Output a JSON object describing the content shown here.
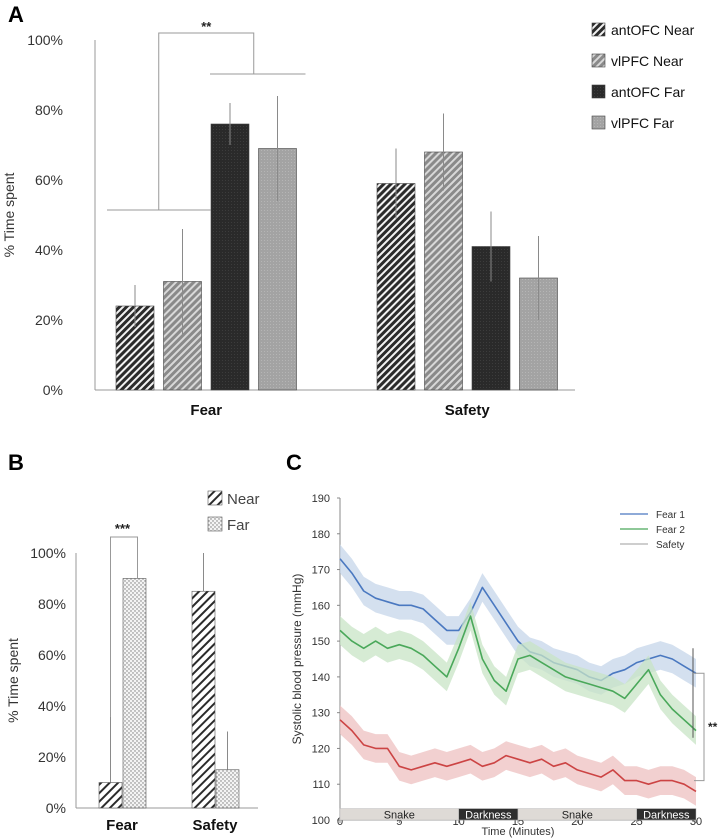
{
  "chart_data": [
    {
      "panel": "A",
      "type": "bar",
      "ylabel": "% Time spent",
      "yticks": [
        "0%",
        "20%",
        "40%",
        "60%",
        "80%",
        "100%"
      ],
      "ylim": [
        0,
        100
      ],
      "categories": [
        "Fear",
        "Safety"
      ],
      "series": [
        {
          "name": "antOFC Near",
          "values": [
            24,
            59
          ],
          "errors": [
            6,
            10
          ],
          "pattern": "dark-hatch"
        },
        {
          "name": "vlPFC Near",
          "values": [
            31,
            68
          ],
          "errors": [
            15,
            11
          ],
          "pattern": "light-hatch"
        },
        {
          "name": "antOFC Far",
          "values": [
            76,
            41
          ],
          "errors": [
            6,
            10
          ],
          "pattern": "dark-solid"
        },
        {
          "name": "vlPFC Far",
          "values": [
            69,
            32
          ],
          "errors": [
            15,
            12
          ],
          "pattern": "light-solid"
        }
      ],
      "annotation": "**",
      "legend": "right"
    },
    {
      "panel": "B",
      "type": "bar",
      "ylabel": "% Time spent",
      "yticks": [
        "0%",
        "20%",
        "40%",
        "60%",
        "80%",
        "100%"
      ],
      "ylim": [
        0,
        100
      ],
      "categories": [
        "Fear",
        "Safety"
      ],
      "series": [
        {
          "name": "Near",
          "values": [
            10,
            85
          ],
          "errors": [
            26,
            15
          ],
          "pattern": "hatch"
        },
        {
          "name": "Far",
          "values": [
            90,
            15
          ],
          "errors": [
            0,
            15
          ],
          "pattern": "dots"
        }
      ],
      "annotation": "***",
      "legend": "top-right"
    },
    {
      "panel": "C",
      "type": "line",
      "xlabel": "Time (Minutes)",
      "ylabel": "Systolic blood pressure (mmHg)",
      "xlim": [
        0,
        30
      ],
      "ylim": [
        100,
        190
      ],
      "xticks": [
        0,
        5,
        10,
        15,
        20,
        25,
        30
      ],
      "yticks": [
        100,
        110,
        120,
        130,
        140,
        150,
        160,
        170,
        180,
        190
      ],
      "series": [
        {
          "name": "Fear 1",
          "color": "#4a78c0",
          "band": "#c6d5ea",
          "x": [
            0,
            1,
            2,
            3,
            4,
            5,
            6,
            7,
            8,
            9,
            10,
            11,
            12,
            13,
            14,
            15,
            16,
            17,
            18,
            19,
            20,
            21,
            22,
            23,
            24,
            25,
            26,
            27,
            28,
            29,
            30
          ],
          "y": [
            173,
            169,
            164,
            162,
            161,
            160,
            160,
            159,
            156,
            153,
            153,
            158,
            165,
            160,
            155,
            150,
            147,
            146,
            144,
            143,
            142,
            140,
            139,
            141,
            142,
            144,
            145,
            146,
            145,
            143,
            141
          ]
        },
        {
          "name": "Fear 2",
          "color": "#4aa85a",
          "band": "#c8e4c6",
          "x": [
            0,
            1,
            2,
            3,
            4,
            5,
            6,
            7,
            8,
            9,
            10,
            11,
            12,
            13,
            14,
            15,
            16,
            17,
            18,
            19,
            20,
            21,
            22,
            23,
            24,
            25,
            26,
            27,
            28,
            29,
            30
          ],
          "y": [
            153,
            150,
            148,
            150,
            148,
            149,
            148,
            146,
            143,
            140,
            148,
            157,
            145,
            139,
            136,
            145,
            146,
            144,
            142,
            140,
            139,
            138,
            137,
            136,
            134,
            138,
            142,
            135,
            131,
            128,
            125
          ]
        },
        {
          "name": "Safety",
          "color": "#cc4444",
          "band": "#eec0c0",
          "x": [
            0,
            1,
            2,
            3,
            4,
            5,
            6,
            7,
            8,
            9,
            10,
            11,
            12,
            13,
            14,
            15,
            16,
            17,
            18,
            19,
            20,
            21,
            22,
            23,
            24,
            25,
            26,
            27,
            28,
            29,
            30
          ],
          "y": [
            128,
            125,
            121,
            120,
            120,
            115,
            114,
            115,
            116,
            115,
            116,
            117,
            115,
            116,
            118,
            117,
            116,
            117,
            115,
            116,
            114,
            113,
            112,
            114,
            111,
            111,
            110,
            111,
            111,
            110,
            108
          ]
        }
      ],
      "phases": [
        {
          "label": "Snake",
          "start": 0,
          "end": 10,
          "style": "light"
        },
        {
          "label": "Darkness",
          "start": 10,
          "end": 15,
          "style": "dark"
        },
        {
          "label": "Snake",
          "start": 15,
          "end": 25,
          "style": "light"
        },
        {
          "label": "Darkness",
          "start": 25,
          "end": 30,
          "style": "dark"
        }
      ],
      "annotation": "**",
      "legend": "top-right"
    }
  ],
  "panels": {
    "a": "A",
    "b": "B",
    "c": "C"
  }
}
